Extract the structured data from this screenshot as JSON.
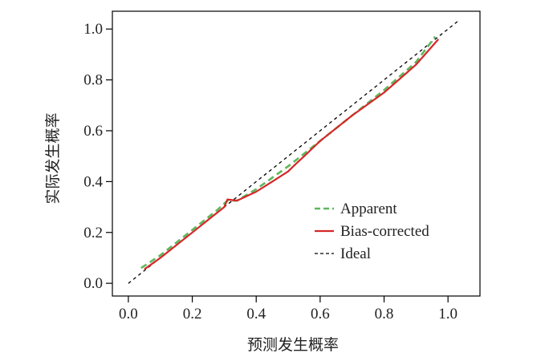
{
  "chart_data": {
    "type": "line",
    "xlabel": "预测发生概率",
    "ylabel": "实际发生概率",
    "xlim": [
      -0.05,
      1.1
    ],
    "ylim": [
      -0.05,
      1.07
    ],
    "xticks": [
      0.0,
      0.2,
      0.4,
      0.6,
      0.8,
      1.0
    ],
    "yticks": [
      0.0,
      0.2,
      0.4,
      0.6,
      0.8,
      1.0
    ],
    "xtick_labels": [
      "0.0",
      "0.2",
      "0.4",
      "0.6",
      "0.8",
      "1.0"
    ],
    "ytick_labels": [
      "0.0",
      "0.2",
      "0.4",
      "0.6",
      "0.8",
      "1.0"
    ],
    "grid": false,
    "legend_position": "lower-right",
    "series": [
      {
        "name": "Apparent",
        "style": "dashed",
        "color": "#5cb85c",
        "x": [
          0.04,
          0.1,
          0.2,
          0.28,
          0.31,
          0.34,
          0.4,
          0.5,
          0.6,
          0.7,
          0.8,
          0.9,
          0.96
        ],
        "y": [
          0.06,
          0.11,
          0.21,
          0.29,
          0.325,
          0.325,
          0.37,
          0.46,
          0.56,
          0.66,
          0.76,
          0.87,
          0.97
        ]
      },
      {
        "name": "Bias-corrected",
        "style": "solid",
        "color": "#d62728",
        "x": [
          0.05,
          0.1,
          0.15,
          0.2,
          0.25,
          0.3,
          0.31,
          0.34,
          0.4,
          0.45,
          0.5,
          0.52,
          0.55,
          0.6,
          0.7,
          0.8,
          0.9,
          0.97
        ],
        "y": [
          0.055,
          0.1,
          0.15,
          0.2,
          0.25,
          0.3,
          0.33,
          0.325,
          0.36,
          0.4,
          0.44,
          0.465,
          0.5,
          0.56,
          0.66,
          0.75,
          0.86,
          0.96
        ]
      },
      {
        "name": "Ideal",
        "style": "dashed",
        "color": "#000000",
        "x": [
          0.0,
          1.03
        ],
        "y": [
          0.0,
          1.03
        ]
      }
    ]
  }
}
